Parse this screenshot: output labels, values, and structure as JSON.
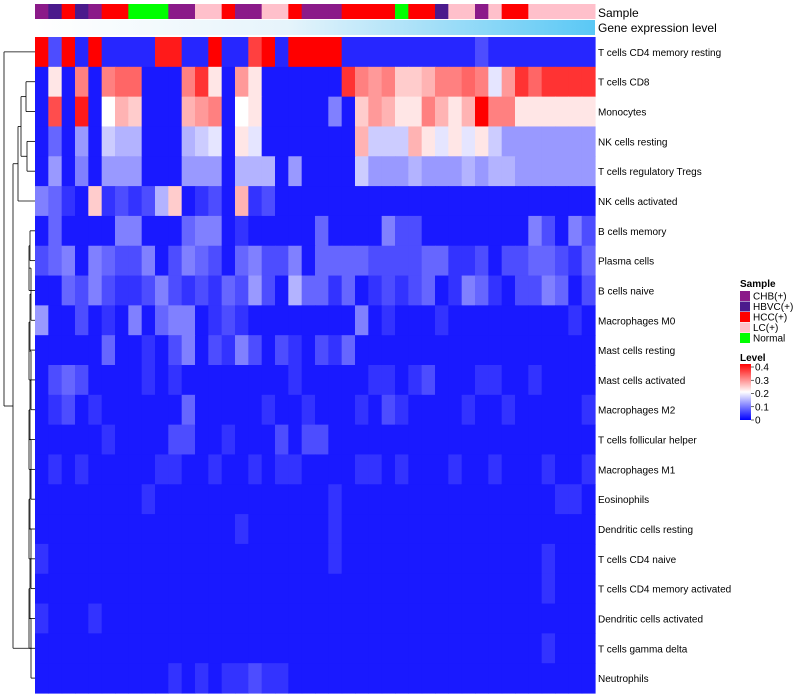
{
  "chart_data": {
    "type": "heatmap",
    "annotation_labels": [
      "Sample",
      "Gene expression level"
    ],
    "samples": [
      "CHB(+)",
      "HBVC(+)",
      "HCC(+)",
      "HBVC(+)",
      "CHB(+)",
      "HCC(+)",
      "HCC(+)",
      "Normal",
      "Normal",
      "Normal",
      "CHB(+)",
      "CHB(+)",
      "LC(+)",
      "LC(+)",
      "HCC(+)",
      "CHB(+)",
      "CHB(+)",
      "LC(+)",
      "LC(+)",
      "HCC(+)",
      "CHB(+)",
      "CHB(+)",
      "CHB(+)",
      "HCC(+)",
      "HCC(+)",
      "HCC(+)",
      "HCC(+)",
      "Normal",
      "HCC(+)",
      "HCC(+)",
      "HBVC(+)",
      "LC(+)",
      "LC(+)",
      "CHB(+)",
      "LC(+)",
      "HCC(+)",
      "HCC(+)",
      "LC(+)",
      "LC(+)",
      "LC(+)",
      "LC(+)",
      "LC(+)"
    ],
    "rows": [
      {
        "label": "T cells CD4 memory resting",
        "values": [
          0.4,
          0.06,
          0.4,
          0.03,
          0.4,
          0.03,
          0.03,
          0.03,
          0.03,
          0.38,
          0.38,
          0.03,
          0.03,
          0.4,
          0.03,
          0.03,
          0.35,
          0.4,
          0.03,
          0.4,
          0.4,
          0.4,
          0.4,
          0.03,
          0.03,
          0.03,
          0.03,
          0.03,
          0.03,
          0.03,
          0.03,
          0.03,
          0.03,
          0.06,
          0.03,
          0.03,
          0.03,
          0.03,
          0.03,
          0.03,
          0.03,
          0.03
        ]
      },
      {
        "label": "T cells CD8",
        "values": [
          0.02,
          0.22,
          0.02,
          0.3,
          0.02,
          0.3,
          0.32,
          0.32,
          0.02,
          0.02,
          0.02,
          0.3,
          0.36,
          0.22,
          0.02,
          0.28,
          0.22,
          0.02,
          0.02,
          0.02,
          0.02,
          0.02,
          0.02,
          0.36,
          0.3,
          0.28,
          0.3,
          0.24,
          0.24,
          0.26,
          0.3,
          0.3,
          0.32,
          0.3,
          0.18,
          0.28,
          0.36,
          0.32,
          0.36,
          0.36,
          0.36,
          0.36
        ]
      },
      {
        "label": "Monocytes",
        "values": [
          0.02,
          0.34,
          0.02,
          0.38,
          0.02,
          0.2,
          0.26,
          0.24,
          0.02,
          0.02,
          0.02,
          0.26,
          0.28,
          0.3,
          0.02,
          0.2,
          0.22,
          0.02,
          0.02,
          0.02,
          0.02,
          0.02,
          0.1,
          0.02,
          0.24,
          0.28,
          0.26,
          0.22,
          0.22,
          0.3,
          0.26,
          0.22,
          0.26,
          0.4,
          0.3,
          0.3,
          0.22,
          0.22,
          0.22,
          0.22,
          0.22,
          0.22
        ]
      },
      {
        "label": "NK cells resting",
        "values": [
          0.02,
          0.08,
          0.02,
          0.12,
          0.02,
          0.16,
          0.14,
          0.14,
          0.02,
          0.02,
          0.02,
          0.14,
          0.16,
          0.18,
          0.02,
          0.22,
          0.18,
          0.02,
          0.02,
          0.02,
          0.02,
          0.02,
          0.02,
          0.02,
          0.26,
          0.16,
          0.16,
          0.16,
          0.26,
          0.22,
          0.18,
          0.22,
          0.18,
          0.22,
          0.16,
          0.12,
          0.12,
          0.12,
          0.12,
          0.12,
          0.12,
          0.12
        ]
      },
      {
        "label": "T cells regulatory  Tregs",
        "values": [
          0.02,
          0.12,
          0.02,
          0.1,
          0.02,
          0.12,
          0.12,
          0.12,
          0.02,
          0.02,
          0.02,
          0.12,
          0.12,
          0.12,
          0.02,
          0.14,
          0.14,
          0.14,
          0.02,
          0.12,
          0.02,
          0.02,
          0.02,
          0.02,
          0.16,
          0.12,
          0.12,
          0.12,
          0.14,
          0.12,
          0.12,
          0.12,
          0.14,
          0.12,
          0.14,
          0.14,
          0.12,
          0.12,
          0.12,
          0.12,
          0.12,
          0.12
        ]
      },
      {
        "label": "NK cells activated",
        "values": [
          0.1,
          0.08,
          0.04,
          0.02,
          0.24,
          0.04,
          0.06,
          0.04,
          0.06,
          0.14,
          0.24,
          0.02,
          0.04,
          0.06,
          0.02,
          0.26,
          0.04,
          0.06,
          0.02,
          0.02,
          0.02,
          0.02,
          0.02,
          0.02,
          0.02,
          0.02,
          0.02,
          0.02,
          0.02,
          0.02,
          0.02,
          0.02,
          0.02,
          0.02,
          0.02,
          0.02,
          0.02,
          0.02,
          0.02,
          0.02,
          0.02,
          0.02
        ]
      },
      {
        "label": "B cells memory",
        "values": [
          0.02,
          0.08,
          0.02,
          0.02,
          0.02,
          0.02,
          0.1,
          0.1,
          0.02,
          0.02,
          0.02,
          0.08,
          0.1,
          0.1,
          0.02,
          0.04,
          0.02,
          0.02,
          0.02,
          0.02,
          0.02,
          0.08,
          0.02,
          0.02,
          0.02,
          0.02,
          0.1,
          0.06,
          0.06,
          0.02,
          0.02,
          0.02,
          0.02,
          0.02,
          0.02,
          0.02,
          0.02,
          0.1,
          0.06,
          0.02,
          0.1,
          0.06
        ]
      },
      {
        "label": "Plasma cells",
        "values": [
          0.06,
          0.08,
          0.1,
          0.02,
          0.1,
          0.08,
          0.06,
          0.06,
          0.1,
          0.02,
          0.06,
          0.1,
          0.08,
          0.06,
          0.02,
          0.08,
          0.1,
          0.06,
          0.06,
          0.1,
          0.02,
          0.08,
          0.08,
          0.08,
          0.08,
          0.06,
          0.06,
          0.06,
          0.06,
          0.08,
          0.08,
          0.04,
          0.04,
          0.06,
          0.02,
          0.06,
          0.06,
          0.08,
          0.08,
          0.06,
          0.04,
          0.08
        ]
      },
      {
        "label": "B cells naive",
        "values": [
          0.02,
          0.02,
          0.08,
          0.06,
          0.1,
          0.06,
          0.04,
          0.04,
          0.06,
          0.1,
          0.06,
          0.04,
          0.06,
          0.04,
          0.08,
          0.06,
          0.12,
          0.06,
          0.02,
          0.14,
          0.08,
          0.08,
          0.04,
          0.08,
          0.02,
          0.04,
          0.06,
          0.04,
          0.06,
          0.08,
          0.02,
          0.04,
          0.1,
          0.08,
          0.04,
          0.02,
          0.06,
          0.06,
          0.1,
          0.08,
          0.02,
          0.06
        ]
      },
      {
        "label": "Macrophages M0",
        "values": [
          0.12,
          0.02,
          0.02,
          0.06,
          0.02,
          0.04,
          0.02,
          0.1,
          0.02,
          0.08,
          0.1,
          0.1,
          0.02,
          0.04,
          0.06,
          0.04,
          0.02,
          0.02,
          0.02,
          0.02,
          0.02,
          0.02,
          0.02,
          0.02,
          0.1,
          0.02,
          0.04,
          0.02,
          0.02,
          0.02,
          0.04,
          0.02,
          0.02,
          0.02,
          0.02,
          0.02,
          0.02,
          0.02,
          0.02,
          0.02,
          0.04,
          0.02
        ]
      },
      {
        "label": "Mast cells resting",
        "values": [
          0.02,
          0.02,
          0.02,
          0.02,
          0.02,
          0.08,
          0.02,
          0.02,
          0.04,
          0.02,
          0.06,
          0.1,
          0.02,
          0.06,
          0.04,
          0.1,
          0.06,
          0.02,
          0.06,
          0.04,
          0.02,
          0.06,
          0.04,
          0.08,
          0.02,
          0.02,
          0.02,
          0.02,
          0.02,
          0.02,
          0.02,
          0.02,
          0.02,
          0.02,
          0.02,
          0.02,
          0.02,
          0.02,
          0.02,
          0.02,
          0.02,
          0.02
        ]
      },
      {
        "label": "Mast cells activated",
        "values": [
          0.02,
          0.06,
          0.08,
          0.06,
          0.02,
          0.02,
          0.02,
          0.02,
          0.04,
          0.02,
          0.04,
          0.02,
          0.02,
          0.02,
          0.02,
          0.02,
          0.02,
          0.02,
          0.02,
          0.04,
          0.02,
          0.02,
          0.02,
          0.02,
          0.02,
          0.04,
          0.04,
          0.02,
          0.04,
          0.06,
          0.02,
          0.02,
          0.02,
          0.04,
          0.04,
          0.02,
          0.02,
          0.04,
          0.02,
          0.02,
          0.02,
          0.02
        ]
      },
      {
        "label": "Macrophages M2",
        "values": [
          0.02,
          0.04,
          0.06,
          0.02,
          0.04,
          0.02,
          0.02,
          0.02,
          0.02,
          0.02,
          0.02,
          0.08,
          0.02,
          0.02,
          0.02,
          0.02,
          0.02,
          0.04,
          0.02,
          0.02,
          0.04,
          0.02,
          0.02,
          0.02,
          0.04,
          0.02,
          0.06,
          0.04,
          0.02,
          0.02,
          0.02,
          0.02,
          0.04,
          0.02,
          0.02,
          0.04,
          0.02,
          0.02,
          0.02,
          0.02,
          0.02,
          0.04
        ]
      },
      {
        "label": "T cells follicular helper",
        "values": [
          0.02,
          0.02,
          0.02,
          0.02,
          0.02,
          0.04,
          0.02,
          0.02,
          0.02,
          0.02,
          0.06,
          0.06,
          0.02,
          0.02,
          0.04,
          0.02,
          0.02,
          0.02,
          0.06,
          0.02,
          0.06,
          0.06,
          0.02,
          0.02,
          0.02,
          0.02,
          0.02,
          0.02,
          0.02,
          0.02,
          0.02,
          0.02,
          0.02,
          0.02,
          0.02,
          0.02,
          0.02,
          0.02,
          0.02,
          0.02,
          0.02,
          0.02
        ]
      },
      {
        "label": "Macrophages M1",
        "values": [
          0.02,
          0.04,
          0.02,
          0.04,
          0.02,
          0.02,
          0.02,
          0.02,
          0.02,
          0.04,
          0.04,
          0.02,
          0.02,
          0.04,
          0.02,
          0.02,
          0.04,
          0.02,
          0.04,
          0.04,
          0.02,
          0.02,
          0.02,
          0.02,
          0.04,
          0.04,
          0.02,
          0.04,
          0.02,
          0.02,
          0.02,
          0.04,
          0.02,
          0.02,
          0.04,
          0.02,
          0.02,
          0.02,
          0.04,
          0.02,
          0.02,
          0.04
        ]
      },
      {
        "label": "Eosinophils",
        "values": [
          0.02,
          0.02,
          0.02,
          0.02,
          0.02,
          0.02,
          0.02,
          0.02,
          0.04,
          0.02,
          0.02,
          0.02,
          0.02,
          0.02,
          0.02,
          0.02,
          0.02,
          0.02,
          0.02,
          0.02,
          0.02,
          0.02,
          0.04,
          0.02,
          0.02,
          0.02,
          0.02,
          0.02,
          0.02,
          0.02,
          0.02,
          0.02,
          0.02,
          0.02,
          0.02,
          0.02,
          0.02,
          0.02,
          0.02,
          0.04,
          0.04,
          0.02
        ]
      },
      {
        "label": "Dendritic cells resting",
        "values": [
          0.02,
          0.02,
          0.02,
          0.02,
          0.02,
          0.02,
          0.02,
          0.02,
          0.02,
          0.02,
          0.02,
          0.02,
          0.02,
          0.02,
          0.02,
          0.04,
          0.02,
          0.02,
          0.02,
          0.02,
          0.02,
          0.02,
          0.04,
          0.02,
          0.02,
          0.02,
          0.02,
          0.02,
          0.02,
          0.02,
          0.02,
          0.02,
          0.02,
          0.02,
          0.02,
          0.02,
          0.02,
          0.02,
          0.02,
          0.02,
          0.02,
          0.02
        ]
      },
      {
        "label": "T cells CD4 naive",
        "values": [
          0.04,
          0.02,
          0.02,
          0.02,
          0.02,
          0.02,
          0.02,
          0.02,
          0.02,
          0.02,
          0.02,
          0.02,
          0.02,
          0.02,
          0.02,
          0.02,
          0.02,
          0.02,
          0.02,
          0.02,
          0.02,
          0.02,
          0.04,
          0.02,
          0.02,
          0.02,
          0.02,
          0.02,
          0.02,
          0.02,
          0.02,
          0.02,
          0.02,
          0.02,
          0.02,
          0.02,
          0.02,
          0.02,
          0.04,
          0.02,
          0.02,
          0.02
        ]
      },
      {
        "label": "T cells CD4 memory activated",
        "values": [
          0.02,
          0.02,
          0.02,
          0.02,
          0.02,
          0.02,
          0.02,
          0.02,
          0.02,
          0.02,
          0.02,
          0.02,
          0.02,
          0.02,
          0.02,
          0.02,
          0.02,
          0.02,
          0.02,
          0.02,
          0.02,
          0.02,
          0.02,
          0.02,
          0.02,
          0.02,
          0.02,
          0.02,
          0.02,
          0.02,
          0.02,
          0.02,
          0.02,
          0.02,
          0.02,
          0.02,
          0.02,
          0.02,
          0.04,
          0.02,
          0.02,
          0.02
        ]
      },
      {
        "label": "Dendritic cells activated",
        "values": [
          0.04,
          0.02,
          0.02,
          0.02,
          0.04,
          0.02,
          0.02,
          0.02,
          0.02,
          0.02,
          0.02,
          0.02,
          0.02,
          0.02,
          0.02,
          0.02,
          0.02,
          0.02,
          0.02,
          0.02,
          0.02,
          0.02,
          0.02,
          0.02,
          0.02,
          0.02,
          0.02,
          0.02,
          0.02,
          0.02,
          0.02,
          0.02,
          0.02,
          0.02,
          0.02,
          0.02,
          0.02,
          0.02,
          0.02,
          0.02,
          0.02,
          0.02
        ]
      },
      {
        "label": "T cells gamma delta",
        "values": [
          0.02,
          0.02,
          0.02,
          0.02,
          0.02,
          0.02,
          0.02,
          0.02,
          0.02,
          0.02,
          0.02,
          0.02,
          0.02,
          0.02,
          0.02,
          0.02,
          0.02,
          0.02,
          0.02,
          0.02,
          0.02,
          0.02,
          0.02,
          0.02,
          0.02,
          0.02,
          0.02,
          0.02,
          0.02,
          0.02,
          0.02,
          0.02,
          0.02,
          0.02,
          0.02,
          0.02,
          0.02,
          0.02,
          0.04,
          0.02,
          0.02,
          0.02
        ]
      },
      {
        "label": "Neutrophils",
        "values": [
          0.02,
          0.02,
          0.02,
          0.02,
          0.02,
          0.02,
          0.02,
          0.02,
          0.02,
          0.02,
          0.04,
          0.02,
          0.04,
          0.02,
          0.04,
          0.04,
          0.06,
          0.04,
          0.04,
          0.02,
          0.02,
          0.02,
          0.02,
          0.02,
          0.02,
          0.02,
          0.02,
          0.02,
          0.02,
          0.02,
          0.02,
          0.02,
          0.02,
          0.02,
          0.02,
          0.02,
          0.02,
          0.02,
          0.02,
          0.02,
          0.02,
          0.02
        ]
      }
    ],
    "legend_sample": {
      "title": "Sample",
      "items": [
        {
          "label": "CHB(+)",
          "color": "#8b1a89"
        },
        {
          "label": "HBVC(+)",
          "color": "#4b1a8c"
        },
        {
          "label": "HCC(+)",
          "color": "#ff0000"
        },
        {
          "label": "LC(+)",
          "color": "#ffc0cb"
        },
        {
          "label": "Normal",
          "color": "#00ff00"
        }
      ]
    },
    "legend_level": {
      "title": "Level",
      "ticks": [
        "0.4",
        "0.3",
        "0.2",
        "0.1",
        "0"
      ],
      "range": [
        0,
        0.4
      ]
    },
    "colors": {
      "low": "#0000ff",
      "mid": "#ffffff",
      "high": "#ff0000",
      "expression_bar": "#5ac8f5"
    }
  }
}
